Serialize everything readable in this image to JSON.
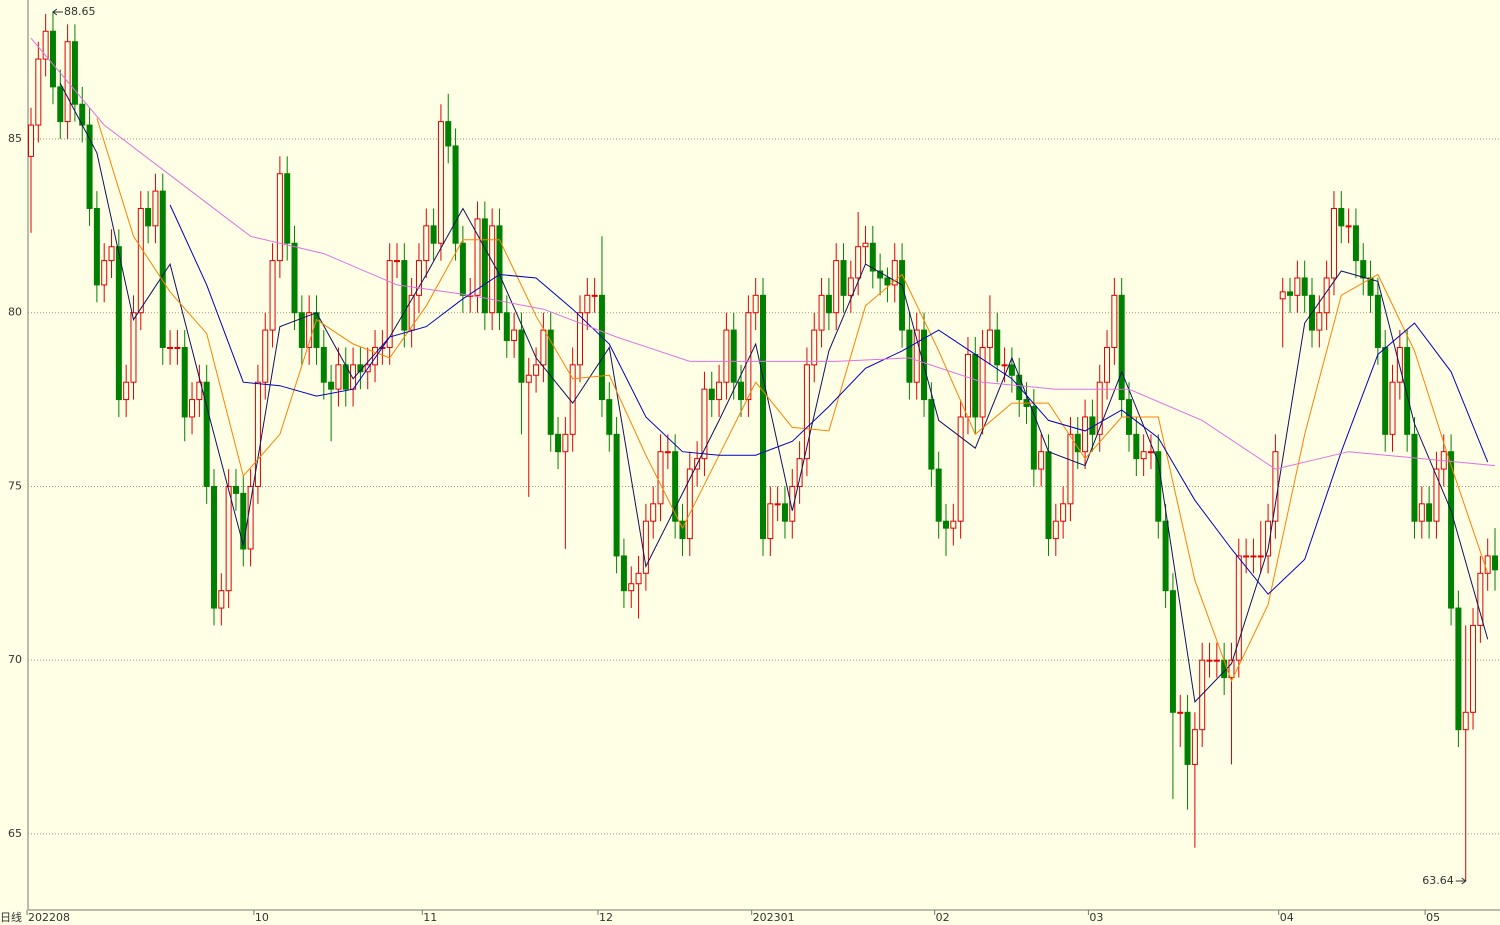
{
  "chart_data": {
    "type": "candlestick",
    "period_label": "日线",
    "up_color": "#e00000",
    "down_color": "#008000",
    "ylim": [
      62.81,
      89.0
    ],
    "yticks": [
      65,
      70,
      75,
      80,
      85
    ],
    "grid": true,
    "xlim": [
      0,
      200
    ],
    "xticks": [
      {
        "value": 0,
        "label": "202208"
      },
      {
        "value": 31,
        "label": "10"
      },
      {
        "value": 54,
        "label": "11"
      },
      {
        "value": 78,
        "label": "12"
      },
      {
        "value": 99,
        "label": "202301"
      },
      {
        "value": 124,
        "label": "02"
      },
      {
        "value": 145,
        "label": "03"
      },
      {
        "value": 171,
        "label": "04"
      },
      {
        "value": 191,
        "label": "05"
      }
    ],
    "open": [
      84.5,
      85.4,
      87.3,
      88.1,
      86.5,
      85.5,
      87.8,
      86.0,
      85.4,
      83.0,
      80.8,
      81.5,
      81.9,
      77.5,
      78.0,
      80.0,
      83.0,
      82.5,
      83.5,
      79.0,
      79.0,
      79.0,
      77.0,
      77.5,
      78.0,
      75.0,
      71.5,
      72.0,
      75.0,
      74.8,
      73.2,
      75.0,
      78.0,
      79.5,
      81.5,
      84.0,
      82.0,
      80.0,
      79.0,
      80.0,
      79.0,
      78.0,
      77.8,
      78.5,
      77.8,
      78.5,
      78.3,
      78.5,
      79.0,
      79.0,
      81.5,
      81.5,
      79.5,
      80.5,
      81.5,
      82.5,
      82.0,
      85.5,
      84.8,
      82.0,
      80.5,
      80.5,
      82.7,
      80.0,
      82.5,
      80.0,
      79.2,
      79.5,
      78.0,
      78.2,
      78.5,
      79.5,
      76.5,
      76.0,
      76.5,
      78.5,
      80.0,
      80.5,
      80.5,
      77.5,
      76.5,
      73.0,
      72.0,
      72.2,
      72.5,
      74.0,
      74.5,
      76.0,
      76.0,
      74.0,
      73.5,
      75.5,
      75.8,
      77.8,
      77.5,
      78.0,
      79.5,
      78.0,
      77.5,
      80.0,
      80.5,
      73.5,
      74.5,
      74.5,
      74.0,
      75.0,
      75.8,
      78.5,
      79.5,
      80.5,
      80.0,
      81.5,
      80.5,
      81.0,
      81.9,
      82.0,
      81.2,
      81.0,
      80.8,
      81.5,
      79.5,
      78.0,
      79.5,
      77.5,
      75.5,
      74.0,
      73.8,
      74.0,
      77.0,
      78.8,
      77.0,
      79.0,
      79.5,
      78.5,
      78.5,
      78.2,
      77.5,
      77.3,
      75.5,
      76.0,
      73.5,
      74.0,
      74.5,
      76.5,
      76.0,
      77.0,
      76.5,
      78.0,
      79.0,
      80.5,
      77.5,
      76.5,
      75.8,
      76.0,
      76.0,
      74.0,
      72.0,
      68.5,
      68.5,
      67.0,
      68.0,
      70.0,
      70.0,
      70.0,
      69.5,
      70.0,
      73.0,
      73.0,
      73.0,
      73.0,
      74.0,
      80.4,
      80.6,
      80.5,
      81.0,
      80.5,
      79.5,
      80.0,
      81.0,
      83.0,
      82.5,
      82.5,
      81.5,
      81.0,
      80.5,
      79.0,
      76.5,
      78.0,
      79.0,
      76.5,
      74.0,
      74.5,
      74.0,
      75.5,
      76.0,
      71.5,
      68.0,
      68.5,
      71.0,
      72.5,
      73.0
    ],
    "high": [
      85.9,
      87.8,
      88.6,
      88.65,
      87.0,
      88.3,
      88.3,
      86.5,
      85.9,
      83.5,
      82.0,
      82.4,
      82.4,
      78.5,
      80.5,
      83.5,
      83.5,
      84.0,
      84.0,
      79.5,
      79.5,
      79.5,
      78.0,
      78.5,
      78.5,
      75.5,
      72.5,
      75.5,
      75.5,
      75.3,
      75.5,
      78.5,
      80.0,
      82.0,
      84.5,
      84.5,
      82.5,
      80.5,
      80.5,
      80.5,
      79.5,
      78.5,
      79.0,
      79.0,
      79.0,
      79.0,
      79.0,
      79.5,
      79.5,
      82.0,
      82.0,
      82.0,
      81.0,
      82.0,
      83.0,
      83.0,
      86.0,
      86.3,
      85.3,
      82.5,
      81.0,
      83.2,
      83.2,
      83.0,
      83.0,
      80.5,
      80.0,
      80.0,
      78.7,
      79.0,
      80.0,
      80.0,
      77.0,
      77.0,
      79.0,
      80.5,
      81.0,
      81.0,
      82.2,
      78.0,
      77.0,
      73.5,
      72.7,
      73.0,
      74.5,
      75.0,
      76.5,
      76.5,
      76.5,
      74.5,
      76.0,
      76.3,
      78.3,
      78.3,
      78.5,
      80.0,
      80.0,
      78.5,
      80.5,
      81.0,
      81.0,
      75.0,
      75.0,
      75.0,
      75.5,
      76.3,
      79.0,
      80.0,
      81.0,
      81.0,
      82.0,
      82.0,
      81.5,
      82.9,
      82.5,
      82.5,
      81.7,
      81.3,
      82.0,
      82.0,
      80.0,
      80.0,
      80.0,
      78.0,
      76.0,
      74.5,
      74.5,
      77.5,
      79.3,
      79.3,
      79.5,
      80.5,
      80.0,
      79.0,
      79.0,
      78.7,
      78.0,
      77.8,
      76.5,
      76.5,
      74.5,
      75.0,
      77.0,
      77.0,
      77.5,
      77.5,
      78.5,
      79.5,
      81.0,
      81.0,
      78.0,
      77.0,
      76.5,
      76.5,
      76.5,
      74.5,
      72.5,
      69.0,
      69.0,
      68.5,
      70.5,
      70.5,
      70.5,
      70.5,
      70.5,
      73.5,
      73.5,
      73.5,
      74.0,
      74.5,
      76.5,
      81.0,
      81.0,
      81.5,
      81.5,
      81.0,
      80.5,
      81.5,
      83.5,
      83.5,
      83.0,
      83.0,
      82.0,
      81.5,
      81.0,
      79.5,
      78.5,
      79.5,
      79.5,
      77.0,
      75.0,
      75.0,
      76.0,
      76.5,
      76.5,
      72.0,
      71.0,
      71.5,
      73.0,
      73.5,
      73.8
    ],
    "low": [
      82.3,
      84.9,
      86.8,
      86.0,
      85.0,
      85.0,
      85.5,
      84.9,
      82.5,
      80.3,
      80.3,
      81.0,
      77.0,
      77.0,
      77.5,
      79.5,
      82.0,
      82.0,
      78.5,
      78.5,
      78.5,
      76.3,
      76.5,
      77.0,
      74.5,
      71.0,
      71.0,
      71.5,
      74.3,
      72.7,
      72.7,
      74.5,
      77.5,
      79.0,
      81.0,
      81.5,
      79.5,
      78.5,
      78.5,
      78.5,
      77.5,
      76.3,
      77.3,
      77.3,
      77.3,
      77.8,
      77.8,
      78.0,
      78.5,
      78.5,
      81.0,
      79.0,
      79.0,
      80.0,
      81.0,
      81.5,
      81.5,
      84.3,
      81.5,
      80.0,
      80.0,
      80.0,
      79.5,
      79.5,
      79.5,
      78.7,
      78.7,
      76.5,
      74.7,
      77.7,
      78.0,
      76.0,
      75.5,
      73.2,
      76.0,
      78.0,
      79.5,
      80.0,
      77.0,
      76.0,
      72.5,
      71.5,
      71.5,
      71.2,
      72.0,
      73.5,
      74.0,
      75.5,
      73.5,
      73.0,
      73.0,
      75.0,
      75.3,
      77.0,
      77.0,
      77.5,
      77.5,
      77.0,
      77.0,
      79.5,
      73.0,
      73.0,
      74.0,
      73.5,
      73.5,
      74.5,
      75.3,
      78.0,
      79.0,
      79.5,
      79.5,
      80.0,
      80.0,
      80.5,
      81.4,
      80.7,
      80.5,
      80.3,
      80.3,
      79.0,
      77.5,
      77.5,
      77.0,
      75.0,
      73.5,
      73.0,
      73.3,
      73.5,
      76.5,
      76.5,
      76.5,
      78.5,
      78.0,
      78.0,
      77.7,
      77.0,
      76.8,
      75.0,
      75.0,
      73.0,
      73.0,
      73.5,
      74.0,
      75.5,
      75.5,
      76.0,
      76.0,
      77.5,
      78.5,
      77.0,
      76.0,
      75.3,
      75.3,
      75.5,
      73.5,
      71.5,
      66.0,
      67.5,
      65.7,
      64.6,
      67.5,
      69.5,
      69.5,
      69.0,
      67.0,
      69.5,
      72.5,
      72.5,
      72.5,
      72.5,
      73.5,
      79.0,
      80.0,
      80.0,
      80.0,
      79.0,
      79.0,
      79.5,
      80.5,
      82.0,
      82.0,
      81.0,
      80.5,
      80.0,
      78.5,
      76.0,
      76.0,
      77.5,
      76.0,
      73.5,
      73.5,
      73.5,
      73.5,
      75.0,
      71.0,
      67.5,
      63.64,
      68.0,
      70.5,
      72.0,
      72.0
    ],
    "close": [
      85.4,
      87.3,
      88.1,
      86.5,
      85.5,
      87.8,
      86.0,
      85.4,
      83.0,
      80.8,
      81.5,
      81.9,
      77.5,
      78.0,
      80.0,
      83.0,
      82.5,
      83.5,
      79.0,
      79.0,
      79.0,
      77.0,
      77.5,
      78.0,
      75.0,
      71.5,
      72.0,
      75.0,
      74.8,
      73.2,
      75.0,
      78.0,
      79.5,
      81.5,
      84.0,
      82.0,
      80.0,
      79.0,
      80.0,
      79.0,
      78.0,
      77.8,
      78.5,
      77.8,
      78.5,
      78.3,
      78.5,
      79.0,
      79.0,
      81.5,
      81.5,
      79.5,
      80.5,
      81.5,
      82.5,
      82.0,
      85.5,
      84.8,
      82.0,
      80.5,
      80.5,
      82.7,
      80.0,
      82.5,
      80.0,
      79.2,
      79.5,
      78.0,
      78.2,
      78.5,
      79.5,
      76.5,
      76.0,
      76.5,
      78.5,
      80.0,
      80.5,
      80.5,
      77.5,
      76.5,
      73.0,
      72.0,
      72.2,
      72.5,
      74.0,
      74.5,
      76.0,
      76.0,
      74.0,
      73.5,
      75.5,
      75.8,
      77.8,
      77.5,
      78.0,
      79.5,
      78.0,
      77.5,
      80.0,
      80.5,
      73.5,
      74.5,
      74.5,
      74.0,
      75.0,
      75.8,
      78.5,
      79.5,
      80.5,
      80.0,
      81.5,
      80.5,
      81.0,
      81.9,
      82.0,
      81.2,
      81.0,
      80.8,
      81.5,
      79.5,
      78.0,
      79.5,
      77.5,
      75.5,
      74.0,
      73.8,
      74.0,
      77.0,
      78.8,
      77.0,
      79.0,
      79.5,
      78.5,
      78.5,
      78.2,
      77.5,
      77.3,
      75.5,
      76.0,
      73.5,
      74.0,
      74.5,
      76.5,
      76.0,
      77.0,
      76.5,
      78.0,
      79.0,
      80.5,
      77.5,
      76.5,
      75.8,
      76.0,
      76.0,
      74.0,
      72.0,
      68.5,
      68.5,
      67.0,
      68.0,
      70.0,
      70.0,
      70.0,
      69.5,
      70.0,
      73.0,
      73.0,
      73.0,
      73.0,
      74.0,
      76.0,
      80.6,
      80.5,
      81.0,
      80.5,
      79.5,
      80.0,
      81.0,
      83.0,
      82.5,
      82.5,
      81.5,
      81.0,
      80.5,
      79.0,
      76.5,
      78.0,
      79.0,
      76.5,
      74.0,
      74.5,
      74.0,
      75.5,
      76.0,
      71.5,
      68.0,
      68.5,
      71.0,
      72.5,
      73.0,
      72.6
    ],
    "lines": [
      {
        "color": "#101060",
        "x": [
          4,
          9,
          14,
          19,
          24,
          29,
          34,
          39,
          44,
          49,
          54,
          59,
          64,
          69,
          74,
          79,
          84,
          89,
          94,
          99,
          104,
          109,
          114,
          119,
          124,
          129,
          134,
          139,
          144,
          149,
          154,
          159,
          164,
          169,
          174,
          179,
          184,
          189,
          194,
          199
        ],
        "values": [
          86.6,
          84.6,
          79.8,
          81.4,
          77.3,
          73.3,
          79.6,
          80.0,
          78.1,
          79.3,
          81.1,
          83.0,
          81.1,
          78.7,
          77.4,
          79.0,
          72.7,
          74.8,
          76.9,
          79.1,
          74.3,
          78.9,
          81.4,
          80.8,
          76.9,
          76.1,
          78.7,
          76.0,
          75.6,
          78.3,
          75.7,
          68.8,
          69.9,
          73.2,
          79.7,
          81.2,
          80.9,
          76.8,
          74.3,
          70.6
        ]
      },
      {
        "color": "#ff8000",
        "x": [
          9,
          14,
          19,
          24,
          29,
          34,
          39,
          44,
          49,
          54,
          59,
          64,
          69,
          74,
          79,
          84,
          89,
          94,
          99,
          104,
          109,
          114,
          119,
          124,
          129,
          134,
          139,
          144,
          149,
          154,
          159,
          164,
          169,
          174,
          179,
          184,
          189,
          194,
          199
        ],
        "values": [
          85.6,
          82.2,
          80.6,
          79.4,
          75.3,
          76.5,
          79.8,
          79.1,
          78.7,
          80.2,
          82.1,
          82.1,
          79.9,
          78.1,
          78.2,
          75.9,
          73.8,
          75.9,
          78.0,
          76.7,
          76.6,
          80.2,
          81.1,
          78.9,
          76.5,
          77.4,
          77.4,
          75.8,
          77.0,
          77.0,
          72.3,
          69.4,
          71.6,
          76.5,
          80.5,
          81.1,
          78.9,
          75.6,
          72.5
        ]
      },
      {
        "color": "#0000c0",
        "x": [
          19,
          24,
          29,
          34,
          39,
          44,
          49,
          54,
          59,
          64,
          69,
          74,
          79,
          84,
          89,
          94,
          99,
          104,
          109,
          114,
          119,
          124,
          129,
          134,
          139,
          144,
          149,
          154,
          159,
          164,
          169,
          174,
          179,
          184,
          189,
          194,
          199
        ],
        "values": [
          83.1,
          80.8,
          78.0,
          77.9,
          77.6,
          77.8,
          79.3,
          79.6,
          80.4,
          81.1,
          81.0,
          80.1,
          79.1,
          77.0,
          76.0,
          75.9,
          75.9,
          76.3,
          77.3,
          78.4,
          78.9,
          79.5,
          78.8,
          78.1,
          76.9,
          76.6,
          77.2,
          76.4,
          74.6,
          73.2,
          71.9,
          72.9,
          76.0,
          78.8,
          79.7,
          78.3,
          75.7
        ]
      },
      {
        "color": "#e070e0",
        "x": [
          0,
          10,
          20,
          30,
          40,
          50,
          60,
          70,
          80,
          90,
          100,
          110,
          120,
          130,
          140,
          150,
          160,
          170,
          180,
          190,
          200
        ],
        "values": [
          87.9,
          85.4,
          83.8,
          82.2,
          81.7,
          80.8,
          80.5,
          80.1,
          79.3,
          78.6,
          78.6,
          78.6,
          78.7,
          78.0,
          77.8,
          77.8,
          76.9,
          75.5,
          76.0,
          75.8,
          75.6
        ]
      }
    ]
  }
}
